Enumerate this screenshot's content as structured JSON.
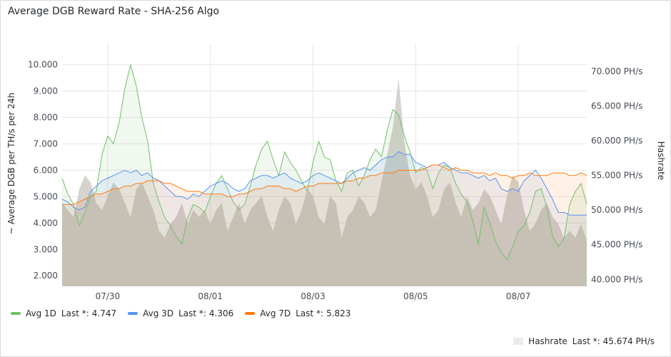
{
  "panel": {
    "title": "Average DGB Reward Rate - SHA-256 Algo"
  },
  "legend": {
    "last_prefix": "Last *:"
  },
  "chart_data": {
    "type": "line",
    "title": "Average DGB Reward Rate - SHA-256 Algo",
    "ylabel": "~ Average DGB per TH/s per 24h",
    "y2label": "Hashrate",
    "ylim": [
      1600,
      10800
    ],
    "y2lim": [
      39000,
      74000
    ],
    "yticks": [
      2000,
      3000,
      4000,
      5000,
      6000,
      7000,
      8000,
      9000,
      10000
    ],
    "ytick_labels": [
      "2.000",
      "3.000",
      "4.000",
      "5.000",
      "6.000",
      "7.000",
      "8.000",
      "9.000",
      "10.000"
    ],
    "y2ticks": [
      40000,
      45000,
      50000,
      55000,
      60000,
      65000,
      70000
    ],
    "y2tick_labels": [
      "40.000 PH/s",
      "45.000 PH/s",
      "50.000 PH/s",
      "55.000 PH/s",
      "60.000 PH/s",
      "65.000 PH/s",
      "70.000 PH/s"
    ],
    "xlim": [
      0,
      9.2
    ],
    "xticks": [
      0.8,
      2.6,
      4.4,
      6.2,
      8.0
    ],
    "xtick_labels": [
      "07/30",
      "08/01",
      "08/03",
      "08/05",
      "08/07"
    ],
    "grid": true,
    "legend_position": "bottom-left",
    "series": [
      {
        "name": "Avg 1D",
        "axis": "left",
        "color": "#73bf69",
        "last": "4.747",
        "x": [
          0,
          0.1,
          0.2,
          0.3,
          0.4,
          0.5,
          0.6,
          0.7,
          0.8,
          0.9,
          1.0,
          1.1,
          1.2,
          1.3,
          1.4,
          1.5,
          1.6,
          1.7,
          1.8,
          1.9,
          2.0,
          2.1,
          2.2,
          2.3,
          2.4,
          2.5,
          2.6,
          2.7,
          2.8,
          2.9,
          3.0,
          3.1,
          3.2,
          3.3,
          3.4,
          3.5,
          3.6,
          3.7,
          3.8,
          3.9,
          4.0,
          4.1,
          4.2,
          4.3,
          4.4,
          4.5,
          4.6,
          4.7,
          4.8,
          4.9,
          5.0,
          5.1,
          5.2,
          5.3,
          5.4,
          5.5,
          5.6,
          5.7,
          5.8,
          5.9,
          6.0,
          6.1,
          6.2,
          6.3,
          6.4,
          6.5,
          6.6,
          6.7,
          6.8,
          6.9,
          7.0,
          7.1,
          7.2,
          7.3,
          7.4,
          7.5,
          7.6,
          7.7,
          7.8,
          7.9,
          8.0,
          8.1,
          8.2,
          8.3,
          8.4,
          8.5,
          8.6,
          8.7,
          8.8,
          8.9,
          9.0,
          9.1,
          9.2
        ],
        "values": [
          5.7,
          5.1,
          4.7,
          3.9,
          4.4,
          5.0,
          5.2,
          6.6,
          7.3,
          7.0,
          7.8,
          9.1,
          10.0,
          9.2,
          8.0,
          7.1,
          5.5,
          4.8,
          4.2,
          3.9,
          3.5,
          3.2,
          4.2,
          4.7,
          4.6,
          4.4,
          5.0,
          5.5,
          5.8,
          5.3,
          4.8,
          4.5,
          4.7,
          5.4,
          6.2,
          6.8,
          7.1,
          6.4,
          5.8,
          6.7,
          6.3,
          6.0,
          5.6,
          5.2,
          6.3,
          7.1,
          6.5,
          6.4,
          5.6,
          5.2,
          5.9,
          6.0,
          5.4,
          5.8,
          6.4,
          6.8,
          6.5,
          7.5,
          8.3,
          8.1,
          7.3,
          6.7,
          5.9,
          6.1,
          6.0,
          5.3,
          5.9,
          6.2,
          6.1,
          5.5,
          5.1,
          4.8,
          4.1,
          3.2,
          4.6,
          4.0,
          3.3,
          2.9,
          2.6,
          3.1,
          3.7,
          3.9,
          4.4,
          5.2,
          5.3,
          4.6,
          3.5,
          3.1,
          3.4,
          4.7,
          5.2,
          5.5,
          4.7
        ]
      },
      {
        "name": "Avg 3D",
        "axis": "left",
        "color": "#5794f2",
        "last": "4.306",
        "x": [
          0,
          0.1,
          0.2,
          0.3,
          0.4,
          0.5,
          0.6,
          0.7,
          0.8,
          0.9,
          1.0,
          1.1,
          1.2,
          1.3,
          1.4,
          1.5,
          1.6,
          1.7,
          1.8,
          1.9,
          2.0,
          2.1,
          2.2,
          2.3,
          2.4,
          2.5,
          2.6,
          2.7,
          2.8,
          2.9,
          3.0,
          3.1,
          3.2,
          3.3,
          3.4,
          3.5,
          3.6,
          3.7,
          3.8,
          3.9,
          4.0,
          4.1,
          4.2,
          4.3,
          4.4,
          4.5,
          4.6,
          4.7,
          4.8,
          4.9,
          5.0,
          5.1,
          5.2,
          5.3,
          5.4,
          5.5,
          5.6,
          5.7,
          5.8,
          5.9,
          6.0,
          6.1,
          6.2,
          6.3,
          6.4,
          6.5,
          6.6,
          6.7,
          6.8,
          6.9,
          7.0,
          7.1,
          7.2,
          7.3,
          7.4,
          7.5,
          7.6,
          7.7,
          7.8,
          7.9,
          8.0,
          8.1,
          8.2,
          8.3,
          8.4,
          8.5,
          8.6,
          8.7,
          8.8,
          8.9,
          9.0,
          9.1,
          9.2
        ],
        "values": [
          4.9,
          4.8,
          4.6,
          4.5,
          4.6,
          5.2,
          5.4,
          5.6,
          5.7,
          5.8,
          5.9,
          6.0,
          5.9,
          6.0,
          5.8,
          5.9,
          5.7,
          5.6,
          5.4,
          5.2,
          5.0,
          5.0,
          4.9,
          5.1,
          5.0,
          5.2,
          5.4,
          5.5,
          5.6,
          5.5,
          5.3,
          5.2,
          5.3,
          5.6,
          5.7,
          5.8,
          5.8,
          5.7,
          5.8,
          5.9,
          5.7,
          5.6,
          5.5,
          5.6,
          5.8,
          5.9,
          5.8,
          5.7,
          5.6,
          5.5,
          5.7,
          5.9,
          6.0,
          6.1,
          6.0,
          6.2,
          6.4,
          6.5,
          6.5,
          6.7,
          6.6,
          6.6,
          6.3,
          6.2,
          6.1,
          6.2,
          6.2,
          6.3,
          6.1,
          6.0,
          5.9,
          5.9,
          5.8,
          5.7,
          5.8,
          5.6,
          5.7,
          5.3,
          5.2,
          5.3,
          5.2,
          5.6,
          5.8,
          6.0,
          5.7,
          5.3,
          4.9,
          4.4,
          4.4,
          4.3,
          4.3,
          4.3,
          4.3
        ]
      },
      {
        "name": "Avg 7D",
        "axis": "left",
        "color": "#ff780a",
        "last": "5.823",
        "x": [
          0,
          0.1,
          0.2,
          0.3,
          0.4,
          0.5,
          0.6,
          0.7,
          0.8,
          0.9,
          1.0,
          1.1,
          1.2,
          1.3,
          1.4,
          1.5,
          1.6,
          1.7,
          1.8,
          1.9,
          2.0,
          2.1,
          2.2,
          2.3,
          2.4,
          2.5,
          2.6,
          2.7,
          2.8,
          2.9,
          3.0,
          3.1,
          3.2,
          3.3,
          3.4,
          3.5,
          3.6,
          3.7,
          3.8,
          3.9,
          4.0,
          4.1,
          4.2,
          4.3,
          4.4,
          4.5,
          4.6,
          4.7,
          4.8,
          4.9,
          5.0,
          5.1,
          5.2,
          5.3,
          5.4,
          5.5,
          5.6,
          5.7,
          5.8,
          5.9,
          6.0,
          6.1,
          6.2,
          6.3,
          6.4,
          6.5,
          6.6,
          6.7,
          6.8,
          6.9,
          7.0,
          7.1,
          7.2,
          7.3,
          7.4,
          7.5,
          7.6,
          7.7,
          7.8,
          7.9,
          8.0,
          8.1,
          8.2,
          8.3,
          8.4,
          8.5,
          8.6,
          8.7,
          8.8,
          8.9,
          9.0,
          9.1,
          9.2
        ],
        "values": [
          4.7,
          4.7,
          4.7,
          4.8,
          4.9,
          5.0,
          5.1,
          5.1,
          5.2,
          5.3,
          5.3,
          5.4,
          5.4,
          5.5,
          5.5,
          5.6,
          5.6,
          5.6,
          5.5,
          5.5,
          5.4,
          5.3,
          5.2,
          5.2,
          5.2,
          5.1,
          5.1,
          5.1,
          5.1,
          5.0,
          5.0,
          5.1,
          5.1,
          5.2,
          5.3,
          5.3,
          5.4,
          5.4,
          5.4,
          5.3,
          5.3,
          5.2,
          5.3,
          5.4,
          5.4,
          5.5,
          5.5,
          5.5,
          5.5,
          5.5,
          5.6,
          5.6,
          5.7,
          5.7,
          5.8,
          5.8,
          5.9,
          5.9,
          5.9,
          6.0,
          6.0,
          6.0,
          6.0,
          6.0,
          6.1,
          6.2,
          6.2,
          6.1,
          6.0,
          6.1,
          6.0,
          6.0,
          5.9,
          5.9,
          5.9,
          5.8,
          5.9,
          5.8,
          5.8,
          5.7,
          5.8,
          5.8,
          5.9,
          5.8,
          5.8,
          5.8,
          5.9,
          5.9,
          5.9,
          5.8,
          5.8,
          5.9,
          5.8
        ]
      },
      {
        "name": "Hashrate",
        "axis": "right",
        "color": "#d6d2cd",
        "last": "45.674 PH/s",
        "x": [
          0,
          0.1,
          0.2,
          0.3,
          0.4,
          0.5,
          0.6,
          0.7,
          0.8,
          0.9,
          1.0,
          1.1,
          1.2,
          1.3,
          1.4,
          1.5,
          1.6,
          1.7,
          1.8,
          1.9,
          2.0,
          2.1,
          2.2,
          2.3,
          2.4,
          2.5,
          2.6,
          2.7,
          2.8,
          2.9,
          3.0,
          3.1,
          3.2,
          3.3,
          3.4,
          3.5,
          3.6,
          3.7,
          3.8,
          3.9,
          4.0,
          4.1,
          4.2,
          4.3,
          4.4,
          4.5,
          4.6,
          4.7,
          4.8,
          4.9,
          5.0,
          5.1,
          5.2,
          5.3,
          5.4,
          5.5,
          5.6,
          5.7,
          5.8,
          5.9,
          6.0,
          6.1,
          6.2,
          6.3,
          6.4,
          6.5,
          6.6,
          6.7,
          6.8,
          6.9,
          7.0,
          7.1,
          7.2,
          7.3,
          7.4,
          7.5,
          7.6,
          7.7,
          7.8,
          7.9,
          8.0,
          8.1,
          8.2,
          8.3,
          8.4,
          8.5,
          8.6,
          8.7,
          8.8,
          8.9,
          9.0,
          9.1,
          9.2
        ],
        "values": [
          51000,
          50000,
          49000,
          53000,
          55000,
          54000,
          51000,
          50000,
          52000,
          54000,
          53000,
          51000,
          49000,
          53000,
          54000,
          52000,
          50000,
          47000,
          46000,
          48000,
          49000,
          51000,
          48000,
          50000,
          49000,
          50000,
          48000,
          50000,
          51000,
          47000,
          49000,
          51000,
          48000,
          50000,
          51000,
          52000,
          49000,
          47000,
          50000,
          52000,
          51000,
          48000,
          50000,
          53000,
          52000,
          49000,
          48000,
          52000,
          51000,
          46000,
          49000,
          50000,
          52000,
          51000,
          49000,
          50000,
          54000,
          58000,
          62000,
          69000,
          60000,
          55000,
          53000,
          54000,
          52000,
          49000,
          50000,
          53000,
          54000,
          51000,
          49000,
          52000,
          50000,
          51000,
          53000,
          52000,
          50000,
          48000,
          52000,
          55000,
          54000,
          50000,
          47000,
          48000,
          50000,
          51000,
          49000,
          48000,
          46000,
          47000,
          46000,
          48000,
          45674
        ]
      }
    ]
  }
}
